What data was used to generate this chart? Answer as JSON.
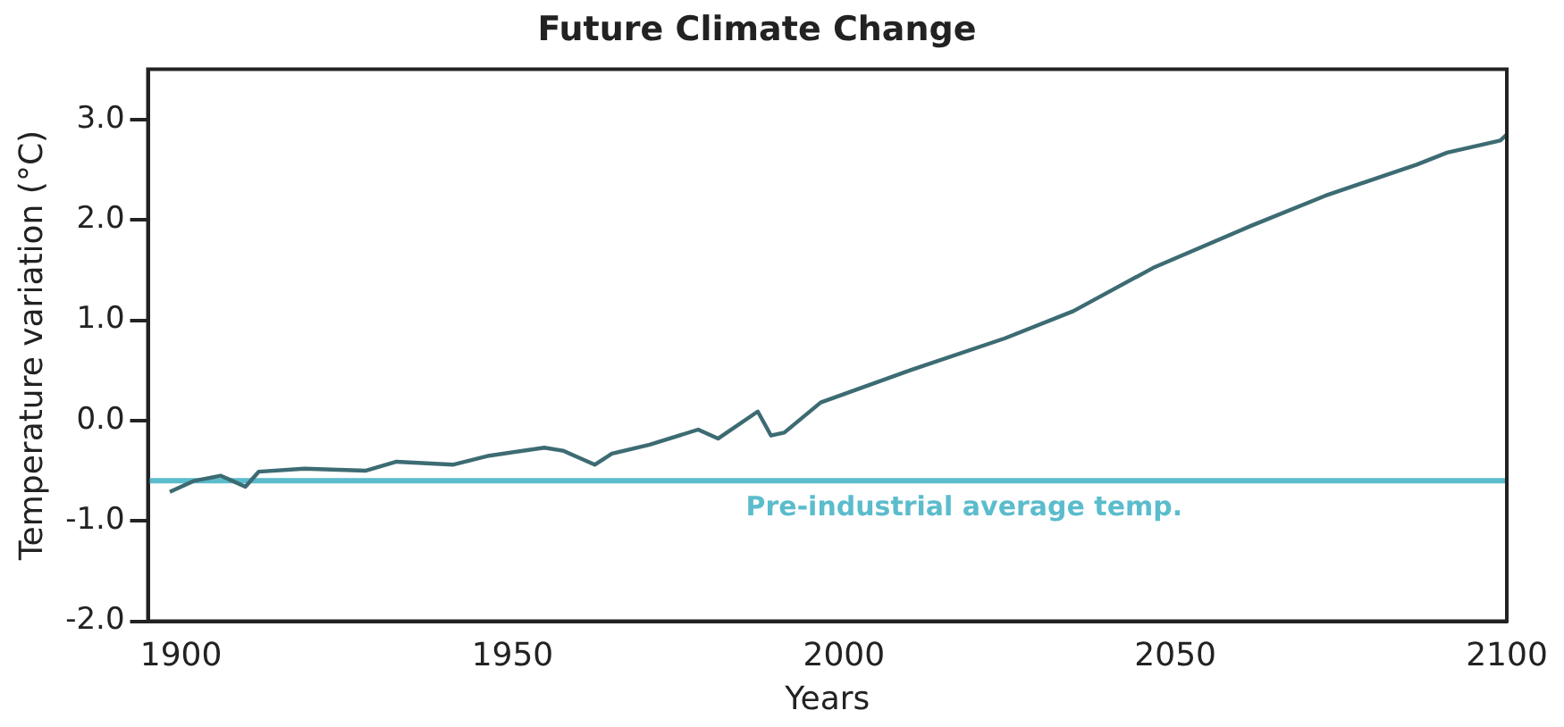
{
  "chart_data": {
    "type": "line",
    "title": "Future Climate Change",
    "xlabel": "Years",
    "ylabel": "Temperature variation (°C)",
    "x": [
      1898.3,
      1902,
      1906,
      1909.7,
      1911.7,
      1918.6,
      1927.8,
      1932.5,
      1941,
      1946.5,
      1954.8,
      1957.6,
      1962.4,
      1965,
      1970.7,
      1978,
      1981,
      1987,
      1989,
      1991,
      1996.5,
      2009.5,
      2024.3,
      2034.6,
      2046.6,
      2061.4,
      2072.6,
      2083.7,
      2086.4,
      2091,
      2099,
      2100
    ],
    "series": [
      {
        "color": "#3d6b73",
        "values": [
          -0.71,
          -0.6,
          -0.55,
          -0.66,
          -0.51,
          -0.48,
          -0.5,
          -0.41,
          -0.44,
          -0.35,
          -0.27,
          -0.3,
          -0.44,
          -0.33,
          -0.24,
          -0.09,
          -0.18,
          0.09,
          -0.15,
          -0.12,
          0.18,
          0.49,
          0.82,
          1.09,
          1.52,
          1.94,
          2.24,
          2.49,
          2.55,
          2.67,
          2.79,
          2.85
        ]
      }
    ],
    "xlim": [
      1895,
      2100
    ],
    "xticks": [
      1900,
      1950,
      2000,
      2050,
      2100
    ],
    "ylim": [
      -2,
      3.5
    ],
    "yticks": [
      {
        "value": -2,
        "label": "-2.0"
      },
      {
        "value": -1,
        "label": "-1.0"
      },
      {
        "value": 0,
        "label": "0.0"
      },
      {
        "value": 1,
        "label": "1.0"
      },
      {
        "value": 2,
        "label": "2.0"
      },
      {
        "value": 3,
        "label": "3.0"
      }
    ],
    "ref_lines": [
      {
        "axis": "y",
        "value": -0.6,
        "label": "Pre-industrial average temp.",
        "color": "#5bbccc"
      }
    ],
    "grid": false,
    "legend": false,
    "marker": "none",
    "line_style": "solid"
  }
}
